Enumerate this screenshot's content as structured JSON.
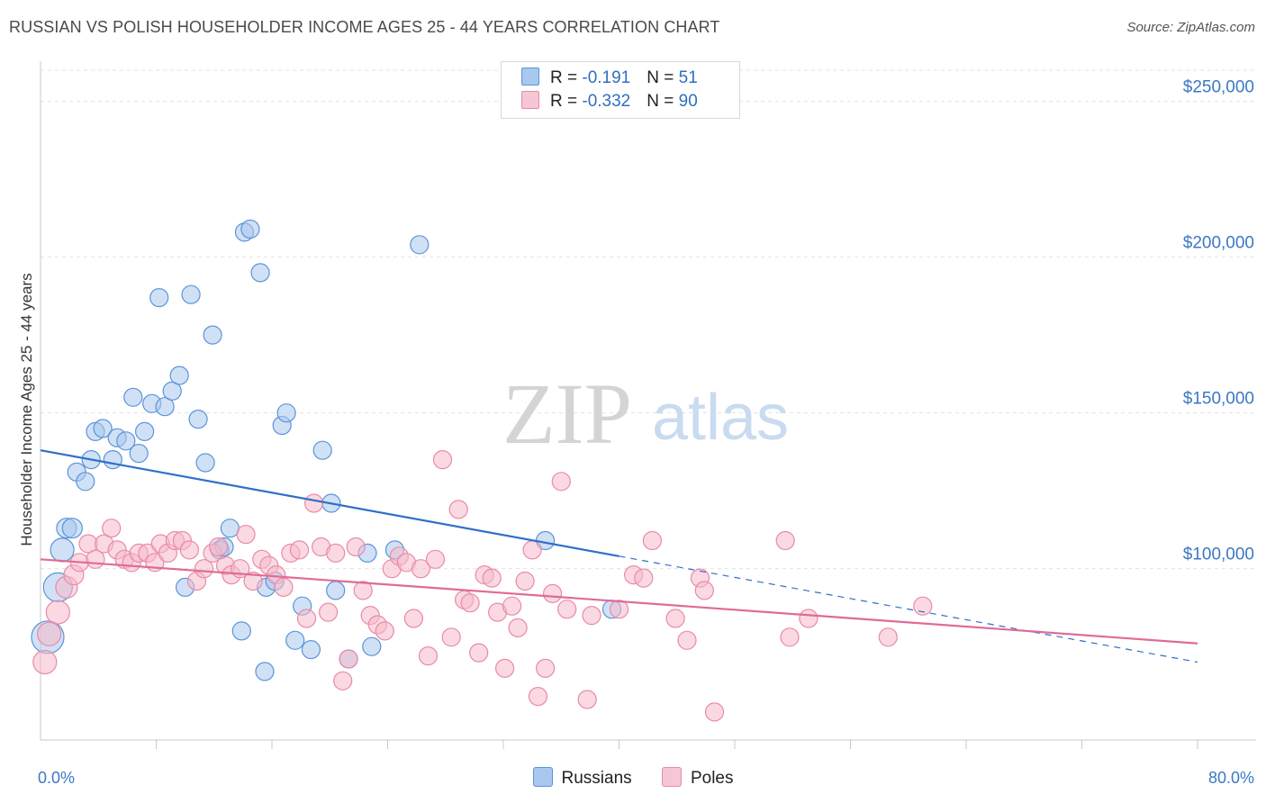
{
  "title": "RUSSIAN VS POLISH HOUSEHOLDER INCOME AGES 25 - 44 YEARS CORRELATION CHART",
  "source": "Source: ZipAtlas.com",
  "watermark": {
    "zip": "ZIP",
    "atlas": "atlas"
  },
  "legend": [
    {
      "r_label": "R = ",
      "r_value": "-0.191",
      "n_label": "N = ",
      "n_value": "51",
      "color": "#a9c8ef"
    },
    {
      "r_label": "R = ",
      "r_value": "-0.332",
      "n_label": "N = ",
      "n_value": "90",
      "color": "#f5b9cb"
    }
  ],
  "chart_data": {
    "type": "scatter",
    "title": "RUSSIAN VS POLISH HOUSEHOLDER INCOME AGES 25 - 44 YEARS CORRELATION CHART",
    "xlabel": "",
    "ylabel": "Householder Income Ages 25 - 44 years",
    "xlim": [
      0,
      80
    ],
    "ylim": [
      45000,
      260000
    ],
    "x_tick_labels": [
      {
        "value": 0,
        "label": "0.0%"
      },
      {
        "value": 80,
        "label": "80.0%"
      }
    ],
    "y_ticks": [
      {
        "value": 100000,
        "label": "$100,000"
      },
      {
        "value": 150000,
        "label": "$150,000"
      },
      {
        "value": 200000,
        "label": "$200,000"
      },
      {
        "value": 250000,
        "label": "$250,000"
      }
    ],
    "grid": true,
    "legend_position": "top-center",
    "series": [
      {
        "name": "Russians",
        "color": "#a9c8ef",
        "stroke": "#5b93d8",
        "trend": {
          "x0": 0,
          "y0": 138000,
          "x1": 40,
          "y1": 104000,
          "dash_to_x": 80,
          "dash_to_y": 70000,
          "color": "#2f6fc9"
        },
        "points": [
          [
            0.5,
            78000,
            18
          ],
          [
            1.2,
            94000,
            16
          ],
          [
            1.5,
            106000,
            13
          ],
          [
            1.8,
            113000,
            11
          ],
          [
            2.2,
            113000,
            11
          ],
          [
            2.5,
            131000,
            10
          ],
          [
            3.1,
            128000,
            10
          ],
          [
            3.5,
            135000,
            10
          ],
          [
            3.8,
            144000,
            10
          ],
          [
            4.3,
            145000,
            10
          ],
          [
            5.0,
            135000,
            10
          ],
          [
            5.3,
            142000,
            10
          ],
          [
            5.9,
            141000,
            10
          ],
          [
            6.4,
            155000,
            10
          ],
          [
            6.8,
            137000,
            10
          ],
          [
            7.2,
            144000,
            10
          ],
          [
            7.7,
            153000,
            10
          ],
          [
            8.2,
            187000,
            10
          ],
          [
            8.6,
            152000,
            10
          ],
          [
            9.1,
            157000,
            10
          ],
          [
            9.6,
            162000,
            10
          ],
          [
            10.0,
            94000,
            10
          ],
          [
            10.4,
            188000,
            10
          ],
          [
            10.9,
            148000,
            10
          ],
          [
            11.4,
            134000,
            10
          ],
          [
            11.9,
            175000,
            10
          ],
          [
            12.4,
            106000,
            10
          ],
          [
            12.7,
            107000,
            10
          ],
          [
            13.1,
            113000,
            10
          ],
          [
            13.9,
            80000,
            10
          ],
          [
            14.1,
            208000,
            10
          ],
          [
            14.5,
            209000,
            10
          ],
          [
            15.2,
            195000,
            10
          ],
          [
            15.6,
            94000,
            10
          ],
          [
            15.5,
            67000,
            10
          ],
          [
            16.2,
            96000,
            10
          ],
          [
            16.7,
            146000,
            10
          ],
          [
            17.0,
            150000,
            10
          ],
          [
            17.6,
            77000,
            10
          ],
          [
            18.1,
            88000,
            10
          ],
          [
            18.7,
            74000,
            10
          ],
          [
            19.5,
            138000,
            10
          ],
          [
            20.1,
            121000,
            10
          ],
          [
            20.4,
            93000,
            10
          ],
          [
            21.3,
            71000,
            10
          ],
          [
            22.6,
            105000,
            10
          ],
          [
            22.9,
            75000,
            10
          ],
          [
            24.5,
            106000,
            10
          ],
          [
            26.2,
            204000,
            10
          ],
          [
            34.9,
            109000,
            10
          ],
          [
            39.5,
            87000,
            10
          ]
        ]
      },
      {
        "name": "Poles",
        "color": "#f5b9cb",
        "stroke": "#e98aa6",
        "trend": {
          "x0": 0,
          "y0": 103000,
          "x1": 80,
          "y1": 76000,
          "color": "#e06b94"
        },
        "points": [
          [
            0.3,
            70000,
            13
          ],
          [
            0.6,
            79000,
            13
          ],
          [
            1.2,
            86000,
            13
          ],
          [
            1.8,
            94000,
            12
          ],
          [
            2.3,
            98000,
            11
          ],
          [
            2.7,
            102000,
            10
          ],
          [
            3.3,
            108000,
            10
          ],
          [
            3.8,
            103000,
            10
          ],
          [
            4.4,
            108000,
            10
          ],
          [
            4.9,
            113000,
            10
          ],
          [
            5.3,
            106000,
            10
          ],
          [
            5.8,
            103000,
            10
          ],
          [
            6.3,
            102000,
            10
          ],
          [
            6.8,
            105000,
            10
          ],
          [
            7.4,
            105000,
            10
          ],
          [
            7.9,
            102000,
            10
          ],
          [
            8.3,
            108000,
            10
          ],
          [
            8.8,
            105000,
            10
          ],
          [
            9.3,
            109000,
            10
          ],
          [
            9.8,
            109000,
            10
          ],
          [
            10.3,
            106000,
            10
          ],
          [
            10.8,
            96000,
            10
          ],
          [
            11.3,
            100000,
            10
          ],
          [
            11.9,
            105000,
            10
          ],
          [
            12.3,
            107000,
            10
          ],
          [
            12.8,
            101000,
            10
          ],
          [
            13.2,
            98000,
            10
          ],
          [
            13.8,
            100000,
            10
          ],
          [
            14.2,
            111000,
            10
          ],
          [
            14.7,
            96000,
            10
          ],
          [
            15.3,
            103000,
            10
          ],
          [
            15.8,
            101000,
            10
          ],
          [
            16.3,
            98000,
            10
          ],
          [
            16.8,
            94000,
            10
          ],
          [
            17.3,
            105000,
            10
          ],
          [
            17.9,
            106000,
            10
          ],
          [
            18.4,
            84000,
            10
          ],
          [
            18.9,
            121000,
            10
          ],
          [
            19.4,
            107000,
            10
          ],
          [
            19.9,
            86000,
            10
          ],
          [
            20.4,
            105000,
            10
          ],
          [
            20.9,
            64000,
            10
          ],
          [
            21.3,
            71000,
            10
          ],
          [
            21.8,
            107000,
            10
          ],
          [
            22.3,
            93000,
            10
          ],
          [
            22.8,
            85000,
            10
          ],
          [
            23.3,
            82000,
            10
          ],
          [
            23.8,
            80000,
            10
          ],
          [
            24.3,
            100000,
            10
          ],
          [
            24.8,
            104000,
            10
          ],
          [
            25.3,
            102000,
            10
          ],
          [
            25.8,
            84000,
            10
          ],
          [
            26.3,
            100000,
            10
          ],
          [
            26.8,
            72000,
            10
          ],
          [
            27.3,
            103000,
            10
          ],
          [
            27.8,
            135000,
            10
          ],
          [
            28.4,
            78000,
            10
          ],
          [
            28.9,
            119000,
            10
          ],
          [
            29.3,
            90000,
            10
          ],
          [
            29.7,
            89000,
            10
          ],
          [
            30.3,
            73000,
            10
          ],
          [
            30.7,
            98000,
            10
          ],
          [
            31.2,
            97000,
            10
          ],
          [
            31.6,
            86000,
            10
          ],
          [
            32.1,
            68000,
            10
          ],
          [
            32.6,
            88000,
            10
          ],
          [
            33.0,
            81000,
            10
          ],
          [
            33.5,
            96000,
            10
          ],
          [
            34.0,
            106000,
            10
          ],
          [
            34.4,
            59000,
            10
          ],
          [
            34.9,
            68000,
            10
          ],
          [
            35.4,
            92000,
            10
          ],
          [
            36.0,
            128000,
            10
          ],
          [
            36.4,
            87000,
            10
          ],
          [
            37.8,
            58000,
            10
          ],
          [
            38.1,
            85000,
            10
          ],
          [
            40.0,
            87000,
            10
          ],
          [
            41.0,
            98000,
            10
          ],
          [
            41.7,
            97000,
            10
          ],
          [
            42.3,
            109000,
            10
          ],
          [
            43.9,
            84000,
            10
          ],
          [
            44.7,
            77000,
            10
          ],
          [
            45.6,
            97000,
            10
          ],
          [
            45.9,
            93000,
            10
          ],
          [
            46.6,
            54000,
            10
          ],
          [
            51.5,
            109000,
            10
          ],
          [
            51.8,
            78000,
            10
          ],
          [
            53.1,
            84000,
            10
          ],
          [
            58.6,
            78000,
            10
          ],
          [
            61.0,
            88000,
            10
          ]
        ]
      }
    ]
  }
}
